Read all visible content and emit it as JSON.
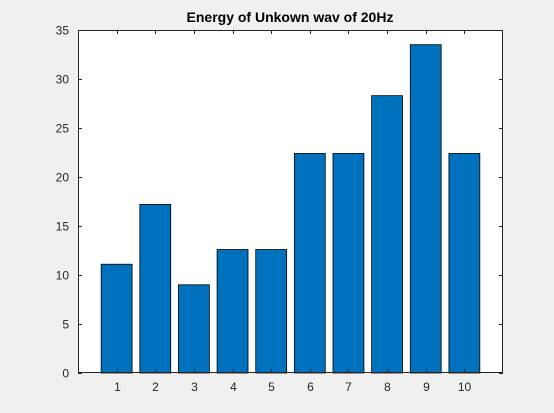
{
  "chart_data": {
    "type": "bar",
    "title": "Energy of Unkown wav of 20Hz",
    "xlabel": "",
    "ylabel": "",
    "categories": [
      "1",
      "2",
      "3",
      "4",
      "5",
      "6",
      "7",
      "8",
      "9",
      "10"
    ],
    "values": [
      11.1,
      17.2,
      9.0,
      12.6,
      12.6,
      22.4,
      22.4,
      28.3,
      33.5,
      22.4
    ],
    "xlim": [
      0,
      11
    ],
    "ylim": [
      0,
      35
    ],
    "yticks": [
      "0",
      "5",
      "10",
      "15",
      "20",
      "25",
      "30",
      "35"
    ],
    "grid": false,
    "legend": "none",
    "colors": {
      "bar_fill": "#0072bd",
      "bar_edge": "#000000",
      "axes_background": "#ffffff",
      "figure_background": "#f0f0f0",
      "axis_line": "#262626",
      "tick_label": "#262626"
    }
  }
}
